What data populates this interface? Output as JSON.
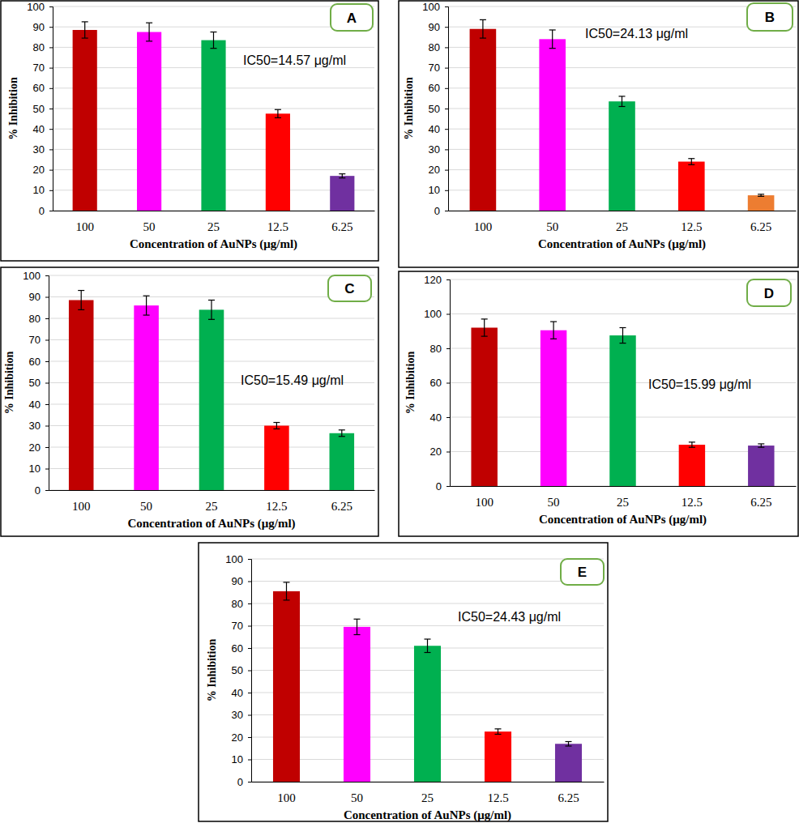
{
  "chart_data": [
    {
      "type": "bar",
      "panel_label": "A",
      "annotation": "IC50=14.57 μg/ml",
      "x_label": "Concentration  of AuNPs (μg/ml)",
      "y_label": "% Inhibition",
      "categories": [
        "100",
        "50",
        "25",
        "12.5",
        "6.25"
      ],
      "values": [
        88.5,
        87.5,
        83.5,
        47.5,
        17
      ],
      "errors": [
        4,
        4.5,
        4,
        2,
        1
      ],
      "colors": [
        "#c00000",
        "#ff00ff",
        "#00b050",
        "#ff0000",
        "#7030a0"
      ],
      "ylim": [
        0,
        100
      ],
      "yticks": [
        0,
        10,
        20,
        30,
        40,
        50,
        60,
        70,
        80,
        90,
        100
      ],
      "grid": true
    },
    {
      "type": "bar",
      "panel_label": "B",
      "annotation": "IC50=24.13 μg/ml",
      "x_label": "Concentration  of AuNPs (μg/ml)",
      "y_label": "% Inhibition",
      "categories": [
        "100",
        "50",
        "25",
        "12.5",
        "6.25"
      ],
      "values": [
        89,
        84,
        53.5,
        24,
        7.5
      ],
      "errors": [
        4.5,
        4.5,
        2.5,
        1.5,
        0.5
      ],
      "colors": [
        "#c00000",
        "#ff00ff",
        "#00b050",
        "#ff0000",
        "#ed7d31"
      ],
      "ylim": [
        0,
        100
      ],
      "yticks": [
        0,
        10,
        20,
        30,
        40,
        50,
        60,
        70,
        80,
        90,
        100
      ],
      "grid": true
    },
    {
      "type": "bar",
      "panel_label": "C",
      "annotation": "IC50=15.49 μg/ml",
      "x_label": "Concentration  of AuNPs (μg/ml)",
      "y_label": "% Inhibition",
      "categories": [
        "100",
        "50",
        "25",
        "12.5",
        "6.25"
      ],
      "values": [
        88.5,
        86,
        84,
        30,
        26.5
      ],
      "errors": [
        4.5,
        4.5,
        4.5,
        1.5,
        1.5
      ],
      "colors": [
        "#c00000",
        "#ff00ff",
        "#00b050",
        "#ff0000",
        "#00b050"
      ],
      "ylim": [
        0,
        100
      ],
      "yticks": [
        0,
        10,
        20,
        30,
        40,
        50,
        60,
        70,
        80,
        90,
        100
      ],
      "grid": true
    },
    {
      "type": "bar",
      "panel_label": "D",
      "annotation": "IC50=15.99 μg/ml",
      "x_label": "Concentration  of AuNPs (μg/ml)",
      "y_label": "% Inhibition",
      "categories": [
        "100",
        "50",
        "25",
        "12.5",
        "6.25"
      ],
      "values": [
        92,
        90.5,
        87.5,
        24,
        23.5
      ],
      "errors": [
        5,
        5,
        4.5,
        1.5,
        1
      ],
      "colors": [
        "#c00000",
        "#ff00ff",
        "#00b050",
        "#ff0000",
        "#7030a0"
      ],
      "ylim": [
        0,
        120
      ],
      "yticks": [
        0,
        20,
        40,
        60,
        80,
        100,
        120
      ],
      "grid": true
    },
    {
      "type": "bar",
      "panel_label": "E",
      "annotation": "IC50=24.43 μg/ml",
      "x_label": "Concentration  of AuNPs (μg/ml)",
      "y_label": "% Inhibition",
      "categories": [
        "100",
        "50",
        "25",
        "12.5",
        "6.25"
      ],
      "values": [
        85.5,
        69.5,
        61,
        22.5,
        17
      ],
      "errors": [
        4,
        3.5,
        3,
        1.2,
        1
      ],
      "colors": [
        "#c00000",
        "#ff00ff",
        "#00b050",
        "#ff0000",
        "#7030a0"
      ],
      "ylim": [
        0,
        100
      ],
      "yticks": [
        0,
        10,
        20,
        30,
        40,
        50,
        60,
        70,
        80,
        90,
        100
      ],
      "grid": true
    }
  ]
}
